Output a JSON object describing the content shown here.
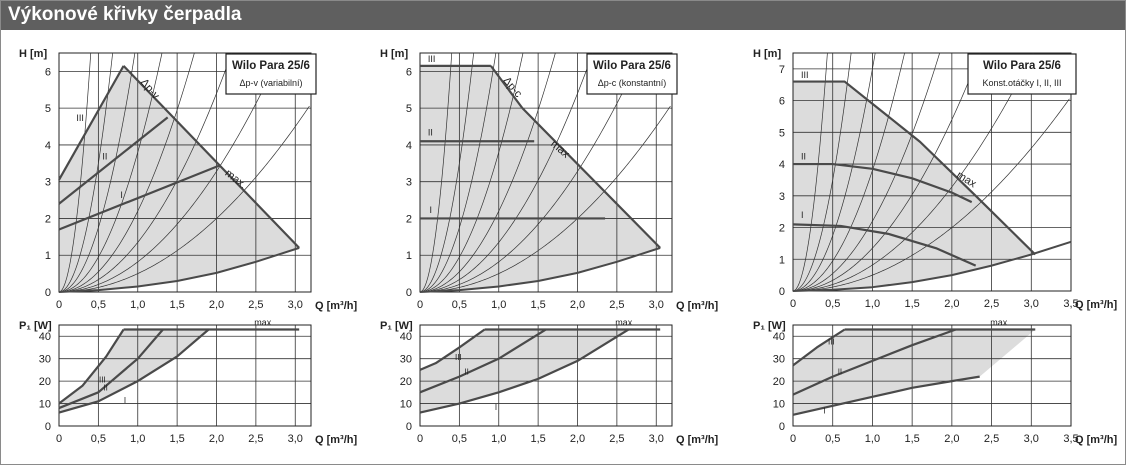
{
  "header": {
    "title": "Výkonové křivky čerpadla"
  },
  "colors": {
    "header_bg": "#5f5f5f",
    "shade": "#dcdcdc",
    "curve": "#4a4a4a",
    "grid": "#333333"
  },
  "chart_data": [
    {
      "type": "line",
      "panel": "H-Q",
      "variant": "variable",
      "ylabel": "H [m]",
      "xlabel": "Q [m³/h]",
      "xlim": [
        0,
        3.2
      ],
      "ylim": [
        0,
        6.5
      ],
      "xticks": [
        "0",
        "0,5",
        "1,0",
        "1,5",
        "2,0",
        "2,5",
        "3,0"
      ],
      "yticks": [
        "0",
        "1",
        "2",
        "3",
        "4",
        "5",
        "6"
      ],
      "legend": {
        "title": "Wilo Para 25/6",
        "subtitle": "Δp-v (variabilní)"
      },
      "labels": {
        "control": "Δp-v",
        "max": "max.",
        "III": "III",
        "II": "II",
        "I": "I"
      },
      "series": [
        {
          "name": "III",
          "x": [
            0,
            0.82
          ],
          "y": [
            3.05,
            6.15
          ]
        },
        {
          "name": "II",
          "x": [
            0,
            1.38
          ],
          "y": [
            2.4,
            4.75
          ]
        },
        {
          "name": "I",
          "x": [
            0,
            2.05
          ],
          "y": [
            1.7,
            3.45
          ]
        },
        {
          "name": "max",
          "x": [
            0.82,
            3.05
          ],
          "y": [
            6.15,
            1.2
          ]
        },
        {
          "name": "min",
          "x": [
            0,
            0.5,
            1.0,
            1.5,
            2.0,
            2.5,
            3.05
          ],
          "y": [
            0,
            0.05,
            0.15,
            0.3,
            0.52,
            0.82,
            1.2
          ]
        }
      ]
    },
    {
      "type": "line",
      "panel": "H-Q",
      "variant": "constant",
      "ylabel": "H [m]",
      "xlabel": "Q [m³/h]",
      "xlim": [
        0,
        3.2
      ],
      "ylim": [
        0,
        6.5
      ],
      "xticks": [
        "0",
        "0,5",
        "1,0",
        "1,5",
        "2,0",
        "2,5",
        "3,0"
      ],
      "yticks": [
        "0",
        "1",
        "2",
        "3",
        "4",
        "5",
        "6"
      ],
      "legend": {
        "title": "Wilo Para 25/6",
        "subtitle": "Δp-c (konstantní)"
      },
      "labels": {
        "control": "Δp-c",
        "max": "max",
        "III": "III",
        "II": "II",
        "I": "I"
      },
      "series": [
        {
          "name": "III",
          "x": [
            0,
            0.9
          ],
          "y": [
            6.15,
            6.15
          ]
        },
        {
          "name": "II",
          "x": [
            0,
            1.45
          ],
          "y": [
            4.1,
            4.1
          ]
        },
        {
          "name": "I",
          "x": [
            0,
            2.35
          ],
          "y": [
            2.0,
            2.0
          ]
        },
        {
          "name": "max",
          "x": [
            0.9,
            1.3,
            3.05
          ],
          "y": [
            6.15,
            5.0,
            1.2
          ]
        },
        {
          "name": "min",
          "x": [
            0,
            0.5,
            1.0,
            1.5,
            2.0,
            2.5,
            3.05
          ],
          "y": [
            0,
            0.05,
            0.15,
            0.3,
            0.52,
            0.82,
            1.2
          ]
        }
      ]
    },
    {
      "type": "line",
      "panel": "H-Q",
      "variant": "fixed-speed",
      "ylabel": "H [m]",
      "xlabel": "Q [m³/h]",
      "xlim": [
        0,
        3.5
      ],
      "ylim": [
        0,
        7.5
      ],
      "xticks": [
        "0",
        "0,5",
        "1,0",
        "1,5",
        "2,0",
        "2,5",
        "3,0",
        "3,5"
      ],
      "yticks": [
        "0",
        "1",
        "2",
        "3",
        "4",
        "5",
        "6",
        "7"
      ],
      "legend": {
        "title": "Wilo Para 25/6",
        "subtitle": "Konst.otáčky I, II, III"
      },
      "labels": {
        "max": "max",
        "III": "III",
        "II": "II",
        "I": "I"
      },
      "series": [
        {
          "name": "III",
          "x": [
            0,
            0.65,
            1.6,
            2.3,
            3.05
          ],
          "y": [
            6.6,
            6.6,
            4.7,
            3.0,
            1.15
          ]
        },
        {
          "name": "II",
          "x": [
            0,
            0.5,
            1.0,
            1.5,
            2.0,
            2.25
          ],
          "y": [
            4.0,
            4.0,
            3.85,
            3.55,
            3.1,
            2.8
          ]
        },
        {
          "name": "I",
          "x": [
            0,
            0.6,
            1.2,
            1.8,
            2.3
          ],
          "y": [
            2.1,
            2.05,
            1.8,
            1.35,
            0.8
          ]
        },
        {
          "name": "min",
          "x": [
            0,
            0.5,
            1.0,
            1.5,
            2.0,
            2.5,
            3.0,
            3.5
          ],
          "y": [
            0,
            0.04,
            0.12,
            0.28,
            0.5,
            0.8,
            1.15,
            1.55
          ]
        }
      ]
    },
    {
      "type": "line",
      "panel": "P1-Q",
      "variant": "variable",
      "ylabel": "P₁ [W]",
      "xlabel": "Q [m³/h]",
      "xlim": [
        0,
        3.2
      ],
      "ylim": [
        0,
        45
      ],
      "xticks": [
        "0",
        "0,5",
        "1,0",
        "1,5",
        "2,0",
        "2,5",
        "3,0"
      ],
      "yticks": [
        "0",
        "10",
        "20",
        "30",
        "40"
      ],
      "labels": {
        "max": "max.",
        "III": "III",
        "II": "II",
        "I": "I"
      },
      "series": [
        {
          "name": "max",
          "x": [
            0.82,
            3.05
          ],
          "y": [
            43,
            43
          ]
        },
        {
          "name": "III",
          "x": [
            0,
            0.3,
            0.6,
            0.82
          ],
          "y": [
            10,
            18,
            31,
            43
          ]
        },
        {
          "name": "II",
          "x": [
            0,
            0.5,
            1.0,
            1.32
          ],
          "y": [
            8,
            15,
            30,
            43
          ]
        },
        {
          "name": "I",
          "x": [
            0,
            0.5,
            1.0,
            1.5,
            1.9
          ],
          "y": [
            6,
            11,
            20,
            31,
            43
          ]
        }
      ]
    },
    {
      "type": "line",
      "panel": "P1-Q",
      "variant": "constant",
      "ylabel": "P₁ [W]",
      "xlabel": "Q [m³/h]",
      "xlim": [
        0,
        3.2
      ],
      "ylim": [
        0,
        45
      ],
      "xticks": [
        "0",
        "0,5",
        "1,0",
        "1,5",
        "2,0",
        "2,5",
        "3,0"
      ],
      "yticks": [
        "0",
        "10",
        "20",
        "30",
        "40"
      ],
      "labels": {
        "max": "max.",
        "III": "III",
        "II": "II",
        "I": "I"
      },
      "series": [
        {
          "name": "max",
          "x": [
            0.82,
            3.05
          ],
          "y": [
            43,
            43
          ]
        },
        {
          "name": "III",
          "x": [
            0,
            0.2,
            0.5,
            0.82
          ],
          "y": [
            25,
            28,
            35,
            43
          ]
        },
        {
          "name": "II",
          "x": [
            0,
            0.5,
            1.0,
            1.6
          ],
          "y": [
            15,
            22,
            30,
            43
          ]
        },
        {
          "name": "I",
          "x": [
            0,
            0.5,
            1.0,
            1.5,
            2.0,
            2.65
          ],
          "y": [
            6,
            10,
            15,
            21,
            29,
            43
          ]
        }
      ]
    },
    {
      "type": "line",
      "panel": "P1-Q",
      "variant": "fixed-speed",
      "ylabel": "P₁ [W]",
      "xlabel": "Q [m³/h]",
      "xlim": [
        0,
        3.5
      ],
      "ylim": [
        0,
        45
      ],
      "xticks": [
        "0",
        "0,5",
        "1,0",
        "1,5",
        "2,0",
        "2,5",
        "3,0",
        "3,5"
      ],
      "yticks": [
        "0",
        "10",
        "20",
        "30",
        "40"
      ],
      "labels": {
        "max": "max.",
        "III": "III",
        "II": "II",
        "I": "I"
      },
      "series": [
        {
          "name": "max",
          "x": [
            0.65,
            3.05
          ],
          "y": [
            43,
            43
          ]
        },
        {
          "name": "III",
          "x": [
            0,
            0.3,
            0.65
          ],
          "y": [
            27,
            35,
            43
          ]
        },
        {
          "name": "II",
          "x": [
            0,
            0.5,
            1.0,
            1.5,
            2.05
          ],
          "y": [
            14,
            22,
            29,
            36,
            43
          ]
        },
        {
          "name": "I",
          "x": [
            0,
            0.5,
            1.0,
            1.5,
            2.0,
            2.35
          ],
          "y": [
            5,
            9,
            13,
            17,
            20,
            22
          ]
        }
      ]
    }
  ]
}
